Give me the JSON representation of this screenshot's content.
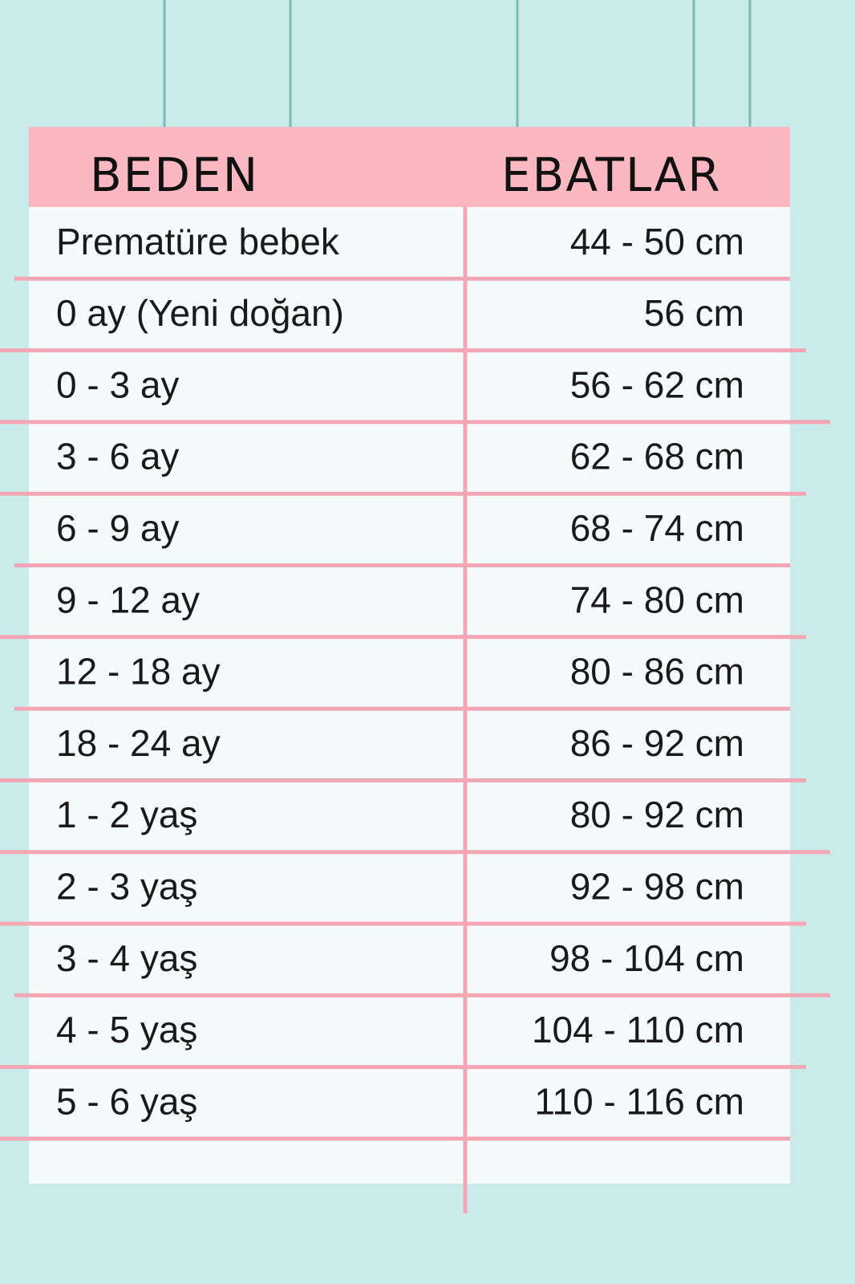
{
  "table": {
    "header": [
      "BEDEN",
      "EBATLAR"
    ],
    "rows": [
      [
        "Prematüre bebek",
        "44 - 50 cm"
      ],
      [
        "0 ay (Yeni doğan)",
        "56 cm"
      ],
      [
        "0 - 3 ay",
        "56 - 62 cm"
      ],
      [
        "3 - 6 ay",
        "62 - 68 cm"
      ],
      [
        "6 - 9 ay",
        "68 - 74 cm"
      ],
      [
        "9 - 12 ay",
        "74 - 80 cm"
      ],
      [
        "12 - 18 ay",
        "80 - 86 cm"
      ],
      [
        "18 - 24 ay",
        "86 - 92 cm"
      ],
      [
        "1 - 2 yaş",
        "80 - 92 cm"
      ],
      [
        "2 - 3 yaş",
        "92 - 98 cm"
      ],
      [
        "3 - 4 yaş",
        "98 - 104 cm"
      ],
      [
        "4 - 5 yaş",
        "104 - 110 cm"
      ],
      [
        "5 - 6 yaş",
        "110 - 116 cm"
      ]
    ]
  }
}
